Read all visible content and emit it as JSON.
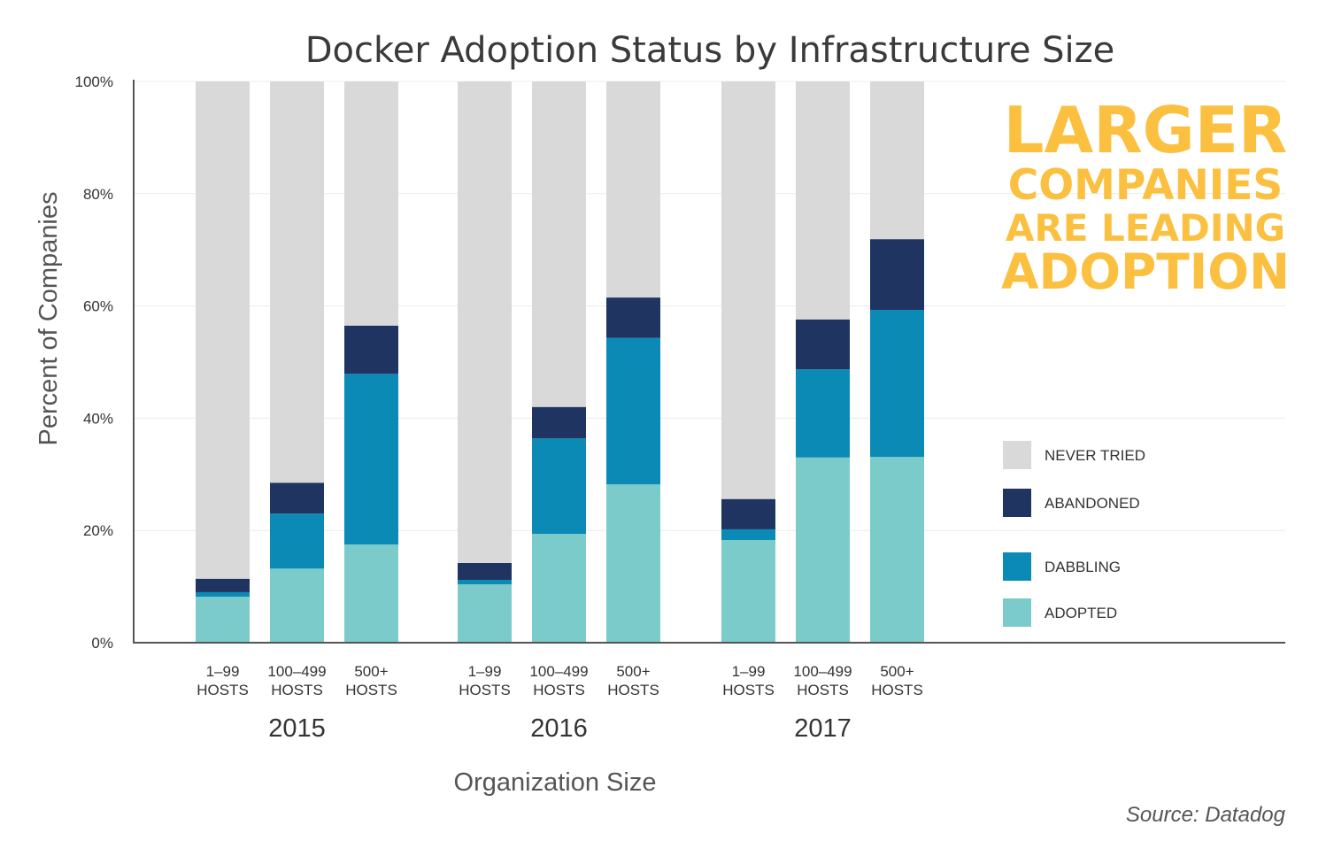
{
  "chart_data": {
    "type": "bar",
    "stacked": true,
    "title": "Docker Adoption Status by Infrastructure Size",
    "xlabel": "Organization Size",
    "ylabel": "Percent of Companies",
    "ylim": [
      0,
      100
    ],
    "yticks": [
      "0%",
      "20%",
      "40%",
      "60%",
      "80%",
      "100%"
    ],
    "groups": [
      {
        "year": "2015",
        "categories": [
          [
            "1-99",
            "HOSTS"
          ],
          [
            "100-499",
            "HOSTS"
          ],
          [
            "500+",
            "HOSTS"
          ]
        ]
      },
      {
        "year": "2016",
        "categories": [
          [
            "1-99",
            "HOSTS"
          ],
          [
            "100-499",
            "HOSTS"
          ],
          [
            "500+",
            "HOSTS"
          ]
        ]
      },
      {
        "year": "2017",
        "categories": [
          [
            "1-99",
            "HOSTS"
          ],
          [
            "100-499",
            "HOSTS"
          ],
          [
            "500+",
            "HOSTS"
          ]
        ]
      }
    ],
    "series": [
      {
        "name": "ADOPTED",
        "color": "#7ccbcb",
        "values": [
          8.2,
          13.2,
          17.5,
          10.4,
          19.4,
          28.2,
          18.3,
          33.0,
          33.1
        ]
      },
      {
        "name": "DABBLING",
        "color": "#0a8ab4",
        "values": [
          0.8,
          9.8,
          30.4,
          0.8,
          17.0,
          26.1,
          1.9,
          15.7,
          26.2
        ]
      },
      {
        "name": "ABANDONED",
        "color": "#1f3461",
        "values": [
          2.4,
          5.5,
          8.6,
          3.0,
          5.6,
          7.2,
          5.4,
          8.9,
          12.6
        ]
      },
      {
        "name": "NEVER TRIED",
        "color": "#d9d9d9",
        "values": [
          88.6,
          71.5,
          43.5,
          85.8,
          58.0,
          38.5,
          74.4,
          42.4,
          28.1
        ]
      }
    ],
    "legend_order": [
      "NEVER TRIED",
      "ABANDONED",
      "DABBLING",
      "ADOPTED"
    ],
    "legend_position": "right",
    "grid": true,
    "annotation": [
      "LARGER",
      "COMPANIES",
      "ARE LEADING",
      "ADOPTION"
    ],
    "source": "Source: Datadog"
  }
}
